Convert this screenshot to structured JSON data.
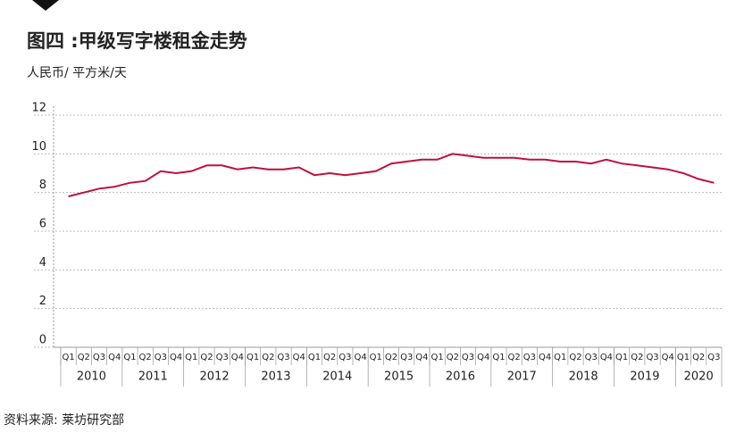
{
  "chart_data": {
    "type": "line",
    "title": "图四 :甲级写字楼租金走势",
    "subtitle": "人民币/ 平方米/天",
    "source": "资料来源: 莱坊研究部",
    "categories": [
      "Q1",
      "Q2",
      "Q3",
      "Q4",
      "Q1",
      "Q2",
      "Q3",
      "Q4",
      "Q1",
      "Q2",
      "Q3",
      "Q4",
      "Q1",
      "Q2",
      "Q3",
      "Q4",
      "Q1",
      "Q2",
      "Q3",
      "Q4",
      "Q1",
      "Q2",
      "Q3",
      "Q4",
      "Q1",
      "Q2",
      "Q3",
      "Q4",
      "Q1",
      "Q2",
      "Q3",
      "Q4",
      "Q1",
      "Q2",
      "Q3",
      "Q4",
      "Q1",
      "Q2",
      "Q3",
      "Q4",
      "Q1",
      "Q2",
      "Q3"
    ],
    "years": [
      "2010",
      "2011",
      "2012",
      "2013",
      "2014",
      "2015",
      "2016",
      "2017",
      "2018",
      "2019",
      "2020"
    ],
    "series": [
      {
        "color": "#c0103a",
        "values": [
          7.8,
          8.0,
          8.2,
          8.3,
          8.5,
          8.6,
          9.1,
          9.0,
          9.1,
          9.4,
          9.4,
          9.2,
          9.3,
          9.2,
          9.2,
          9.3,
          8.9,
          9.0,
          8.9,
          9.0,
          9.1,
          9.5,
          9.6,
          9.7,
          9.7,
          10.0,
          9.9,
          9.8,
          9.8,
          9.8,
          9.7,
          9.7,
          9.6,
          9.6,
          9.5,
          9.7,
          9.5,
          9.4,
          9.3,
          9.2,
          9.0,
          8.7,
          8.5
        ]
      }
    ],
    "ylim": [
      0,
      12
    ],
    "yticks": [
      0,
      2,
      4,
      6,
      8,
      10,
      12
    ],
    "grid": true
  }
}
